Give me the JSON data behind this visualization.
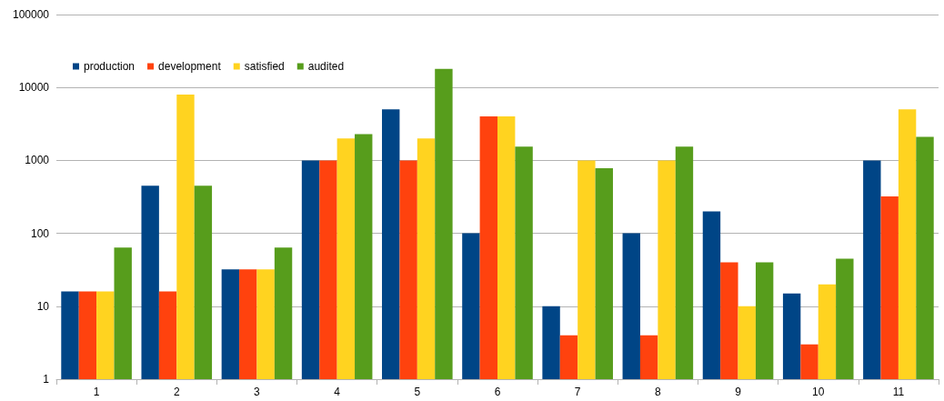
{
  "chart_data": {
    "type": "bar",
    "categories": [
      "1",
      "2",
      "3",
      "4",
      "5",
      "6",
      "7",
      "8",
      "9",
      "10",
      "11"
    ],
    "series": [
      {
        "name": "production",
        "color": "#004586",
        "values": [
          16,
          450,
          32,
          1000,
          5000,
          100,
          10,
          100,
          200,
          15,
          1000
        ]
      },
      {
        "name": "development",
        "color": "#ff420e",
        "values": [
          16,
          16,
          32,
          1000,
          1000,
          4000,
          4,
          4,
          40,
          3,
          320
        ]
      },
      {
        "name": "satisfied",
        "color": "#ffd320",
        "values": [
          16,
          8000,
          32,
          2000,
          2000,
          4000,
          1000,
          1000,
          10,
          20,
          5000
        ]
      },
      {
        "name": "audited",
        "color": "#579d1c",
        "values": [
          64,
          450,
          64,
          2300,
          18000,
          1550,
          780,
          1550,
          40,
          45,
          2100
        ]
      }
    ],
    "log": true,
    "ylim": [
      1,
      100000
    ],
    "yticks": [
      1,
      10,
      100,
      1000,
      10000,
      100000
    ],
    "grid": "y",
    "legend": "top left"
  }
}
